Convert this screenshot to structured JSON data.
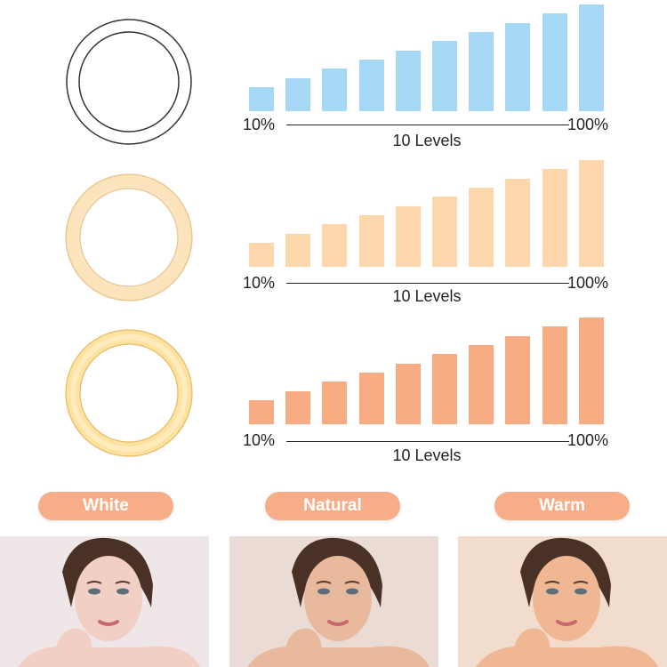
{
  "tones": [
    {
      "name": "White",
      "bar_color": "#a6d8f6",
      "ring_color": "#ffffff",
      "ring_glow": "#ffffff"
    },
    {
      "name": "Natural",
      "bar_color": "#fbd7ab",
      "ring_color": "#fde7c4",
      "ring_glow": "#fff4dc"
    },
    {
      "name": "Warm",
      "bar_color": "#f8ac84",
      "ring_color": "#fdd98c",
      "ring_glow": "#fff0c0"
    }
  ],
  "chart": {
    "min_label": "10%",
    "max_label": "100%",
    "caption": "10 Levels",
    "levels": [
      10,
      20,
      30,
      40,
      50,
      60,
      70,
      80,
      90,
      100
    ]
  },
  "chart_data": [
    {
      "type": "bar",
      "series": [
        {
          "name": "White",
          "values": [
            10,
            20,
            30,
            40,
            50,
            60,
            70,
            80,
            90,
            100
          ]
        }
      ]
    },
    {
      "type": "bar",
      "series": [
        {
          "name": "Natural",
          "values": [
            10,
            20,
            30,
            40,
            50,
            60,
            70,
            80,
            90,
            100
          ]
        }
      ]
    },
    {
      "type": "bar",
      "series": [
        {
          "name": "Warm",
          "values": [
            10,
            20,
            30,
            40,
            50,
            60,
            70,
            80,
            90,
            100
          ]
        }
      ]
    }
  ],
  "photos": [
    {
      "name": "white-photo",
      "bg": "#efe6e7",
      "skin": "#f1cfc4"
    },
    {
      "name": "natural-photo",
      "bg": "#eadbd4",
      "skin": "#e9b99e"
    },
    {
      "name": "warm-photo",
      "bg": "#f2dccb",
      "skin": "#efb793"
    }
  ]
}
